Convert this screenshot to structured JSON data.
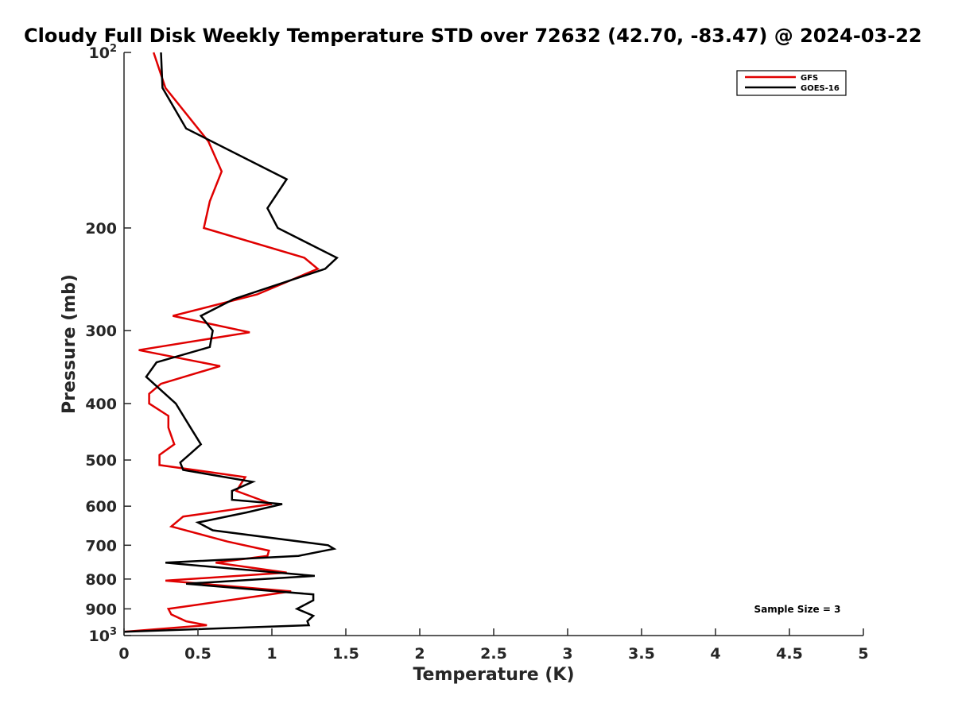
{
  "chart_data": {
    "type": "line",
    "title": "Cloudy Full Disk Weekly Temperature STD over 72632 (42.70, -83.47) @ 2024-03-22",
    "xlabel": "Temperature (K)",
    "ylabel": "Pressure (mb)",
    "xlim": [
      0,
      5
    ],
    "ylim": [
      1000,
      100
    ],
    "yscale": "log",
    "xticks": [
      "0",
      "0.5",
      "1",
      "1.5",
      "2",
      "2.5",
      "3",
      "3.5",
      "4",
      "4.5",
      "5"
    ],
    "yticks": [
      {
        "value": 100,
        "label": "10",
        "sup": "2"
      },
      {
        "value": 200,
        "label": "200",
        "sup": ""
      },
      {
        "value": 300,
        "label": "300",
        "sup": ""
      },
      {
        "value": 400,
        "label": "400",
        "sup": ""
      },
      {
        "value": 500,
        "label": "500",
        "sup": ""
      },
      {
        "value": 600,
        "label": "600",
        "sup": ""
      },
      {
        "value": 700,
        "label": "700",
        "sup": ""
      },
      {
        "value": 800,
        "label": "800",
        "sup": ""
      },
      {
        "value": 900,
        "label": "900",
        "sup": ""
      },
      {
        "value": 1000,
        "label": "10",
        "sup": "3"
      }
    ],
    "legend_position": "top-right",
    "annotation": "Sample Size = 3",
    "series": [
      {
        "name": "GFS",
        "color": "#e00000",
        "points": [
          [
            0.2,
            100
          ],
          [
            0.28,
            115
          ],
          [
            0.57,
            142
          ],
          [
            0.66,
            160
          ],
          [
            0.58,
            180
          ],
          [
            0.54,
            200
          ],
          [
            1.22,
            225
          ],
          [
            1.31,
            235
          ],
          [
            0.9,
            260
          ],
          [
            0.33,
            283
          ],
          [
            0.85,
            302
          ],
          [
            0.1,
            324
          ],
          [
            0.65,
            345
          ],
          [
            0.25,
            370
          ],
          [
            0.17,
            385
          ],
          [
            0.17,
            400
          ],
          [
            0.3,
            420
          ],
          [
            0.3,
            440
          ],
          [
            0.34,
            470
          ],
          [
            0.24,
            490
          ],
          [
            0.24,
            510
          ],
          [
            0.82,
            535
          ],
          [
            0.76,
            565
          ],
          [
            1.0,
            595
          ],
          [
            0.4,
            625
          ],
          [
            0.32,
            650
          ],
          [
            0.7,
            690
          ],
          [
            0.98,
            715
          ],
          [
            0.97,
            730
          ],
          [
            0.62,
            750
          ],
          [
            1.1,
            780
          ],
          [
            0.28,
            805
          ],
          [
            1.13,
            840
          ],
          [
            0.85,
            860
          ],
          [
            0.3,
            900
          ],
          [
            0.32,
            920
          ],
          [
            0.42,
            945
          ],
          [
            0.56,
            960
          ],
          [
            0.0,
            985
          ]
        ]
      },
      {
        "name": "GOES-16",
        "color": "#000000",
        "points": [
          [
            0.25,
            100
          ],
          [
            0.26,
            115
          ],
          [
            0.42,
            135
          ],
          [
            1.1,
            165
          ],
          [
            0.97,
            185
          ],
          [
            1.04,
            200
          ],
          [
            1.44,
            225
          ],
          [
            1.36,
            235
          ],
          [
            0.74,
            265
          ],
          [
            0.52,
            283
          ],
          [
            0.6,
            300
          ],
          [
            0.58,
            320
          ],
          [
            0.22,
            340
          ],
          [
            0.15,
            360
          ],
          [
            0.35,
            400
          ],
          [
            0.45,
            440
          ],
          [
            0.52,
            470
          ],
          [
            0.44,
            490
          ],
          [
            0.38,
            505
          ],
          [
            0.4,
            520
          ],
          [
            0.87,
            545
          ],
          [
            0.73,
            565
          ],
          [
            0.73,
            585
          ],
          [
            1.07,
            595
          ],
          [
            0.83,
            615
          ],
          [
            0.5,
            640
          ],
          [
            0.6,
            660
          ],
          [
            1.38,
            700
          ],
          [
            1.42,
            710
          ],
          [
            1.18,
            730
          ],
          [
            0.28,
            750
          ],
          [
            1.29,
            790
          ],
          [
            0.42,
            815
          ],
          [
            1.28,
            850
          ],
          [
            1.28,
            870
          ],
          [
            1.17,
            900
          ],
          [
            1.28,
            925
          ],
          [
            1.24,
            945
          ],
          [
            1.25,
            960
          ],
          [
            0.0,
            985
          ]
        ]
      }
    ]
  }
}
